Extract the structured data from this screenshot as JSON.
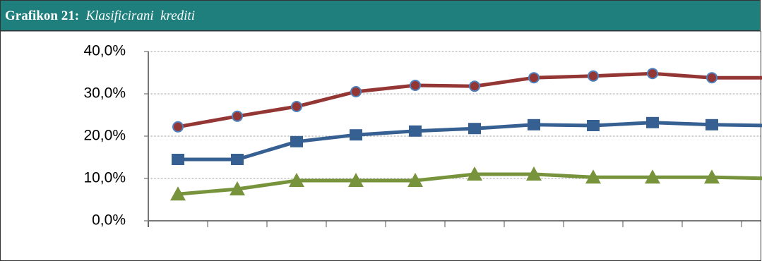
{
  "figure_label": "Grafikon 21:",
  "chart_data": {
    "type": "line",
    "title": "Klasificirani  krediti",
    "categories": [
      null,
      null,
      null,
      null,
      null,
      null,
      null,
      null,
      null,
      null,
      null
    ],
    "series": [
      {
        "name": null,
        "color": "#943634",
        "marker": "circle",
        "marker_edge": "#4f81bd",
        "values": [
          22.2,
          24.7,
          27.0,
          30.5,
          32.0,
          31.8,
          33.8,
          34.2,
          34.8,
          33.8,
          33.8
        ]
      },
      {
        "name": null,
        "color": "#376092",
        "marker": "square",
        "values": [
          14.5,
          14.5,
          18.7,
          20.3,
          21.2,
          21.8,
          22.7,
          22.5,
          23.2,
          22.7,
          22.5
        ]
      },
      {
        "name": null,
        "color": "#77933c",
        "marker": "triangle",
        "values": [
          6.3,
          7.5,
          9.5,
          9.5,
          9.5,
          11.0,
          11.0,
          10.3,
          10.3,
          10.3,
          10.0
        ]
      }
    ],
    "ylim": [
      0,
      40
    ],
    "yticks": [
      {
        "value": 0,
        "label": "0,0%"
      },
      {
        "value": 10,
        "label": "10,0%"
      },
      {
        "value": 20,
        "label": "20,0%"
      },
      {
        "value": 30,
        "label": "30,0%"
      },
      {
        "value": 40,
        "label": "40,0%"
      }
    ],
    "grid": true
  }
}
